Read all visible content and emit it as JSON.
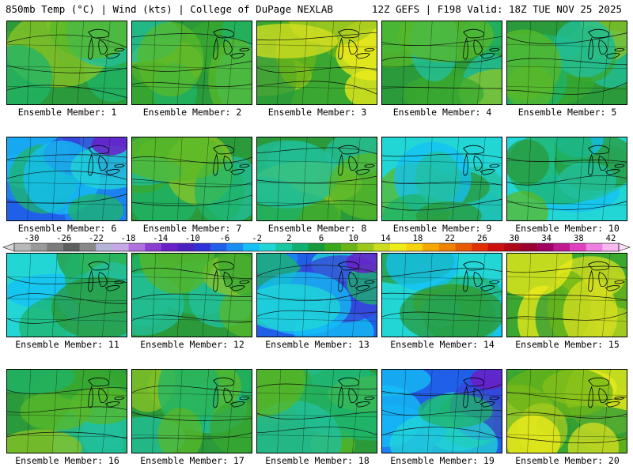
{
  "header": {
    "left": "850mb Temp (°C) | Wind (kts) | College of DuPage NEXLAB",
    "right": "12Z GEFS | F198 Valid: 18Z TUE NOV 25 2025"
  },
  "colorbar": {
    "labels": [
      "-30",
      "-26",
      "-22",
      "-18",
      "-14",
      "-10",
      "-6",
      "-2",
      "2",
      "6",
      "10",
      "14",
      "18",
      "22",
      "26",
      "30",
      "34",
      "38",
      "42"
    ],
    "colors": [
      "#b8b8b8",
      "#9a9a9a",
      "#7c7c7c",
      "#5e5e5e",
      "#888888",
      "#b5b5d8",
      "#c7a7e6",
      "#b070e0",
      "#8a3fd0",
      "#6a1fc8",
      "#4b1fc0",
      "#3030d8",
      "#2060e8",
      "#1a8ef2",
      "#14c0f5",
      "#22d6d6",
      "#19c8a0",
      "#10b070",
      "#149a3c",
      "#3aa81c",
      "#6ab418",
      "#9cc81c",
      "#cddc1e",
      "#f0ec1a",
      "#f6d210",
      "#f5a800",
      "#f08200",
      "#e85a00",
      "#e03000",
      "#cc1010",
      "#b00818",
      "#9a0030",
      "#a00060",
      "#c01890",
      "#e040c0",
      "#f080e0",
      "#f8b8f0"
    ]
  },
  "members": [
    {
      "label": "Ensemble Member: 1",
      "palette": "green"
    },
    {
      "label": "Ensemble Member: 2",
      "palette": "green"
    },
    {
      "label": "Ensemble Member: 3",
      "palette": "warm"
    },
    {
      "label": "Ensemble Member: 4",
      "palette": "green"
    },
    {
      "label": "Ensemble Member: 5",
      "palette": "green"
    },
    {
      "label": "Ensemble Member: 6",
      "palette": "cold"
    },
    {
      "label": "Ensemble Member: 7",
      "palette": "green"
    },
    {
      "label": "Ensemble Member: 8",
      "palette": "green"
    },
    {
      "label": "Ensemble Member: 9",
      "palette": "cyan"
    },
    {
      "label": "Ensemble Member: 10",
      "palette": "cyan"
    },
    {
      "label": "Ensemble Member: 11",
      "palette": "cyan"
    },
    {
      "label": "Ensemble Member: 12",
      "palette": "green"
    },
    {
      "label": "Ensemble Member: 13",
      "palette": "cold"
    },
    {
      "label": "Ensemble Member: 14",
      "palette": "cyan"
    },
    {
      "label": "Ensemble Member: 15",
      "palette": "warm"
    },
    {
      "label": "Ensemble Member: 16",
      "palette": "green"
    },
    {
      "label": "Ensemble Member: 17",
      "palette": "green"
    },
    {
      "label": "Ensemble Member: 18",
      "palette": "green"
    },
    {
      "label": "Ensemble Member: 19",
      "palette": "cold"
    },
    {
      "label": "Ensemble Member: 20",
      "palette": "warm"
    }
  ]
}
